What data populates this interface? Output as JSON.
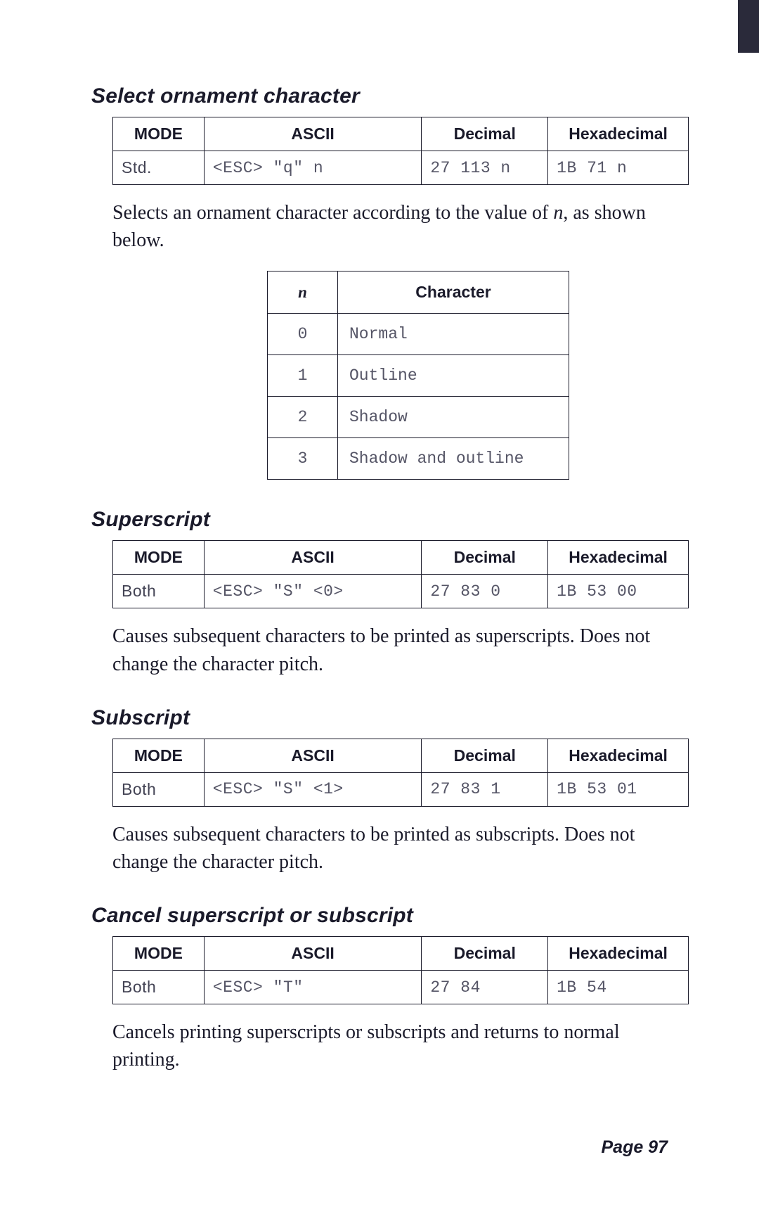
{
  "sections": {
    "ornament": {
      "heading": "Select ornament character",
      "table": {
        "headers": [
          "MODE",
          "ASCII",
          "Decimal",
          "Hexadecimal"
        ],
        "mode": "Std.",
        "ascii": "<ESC> \"q\" n",
        "decimal": "27 113 n",
        "hex": "1B 71 n"
      },
      "desc1": "Selects an ornament character according to the value of ",
      "desc_n": "n",
      "desc2": ", as shown below.",
      "char_table": {
        "hdr_n": "n",
        "hdr_char": "Character",
        "rows": [
          {
            "n": "0",
            "c": "Normal"
          },
          {
            "n": "1",
            "c": "Outline"
          },
          {
            "n": "2",
            "c": "Shadow"
          },
          {
            "n": "3",
            "c": "Shadow and outline"
          }
        ]
      }
    },
    "superscript": {
      "heading": "Superscript",
      "table": {
        "mode": "Both",
        "ascii": "<ESC> \"S\" <0>",
        "decimal": "27 83 0",
        "hex": "1B 53 00"
      },
      "desc": "Causes subsequent characters to be printed as super­scripts. Does not change the character pitch."
    },
    "subscript": {
      "heading": "Subscript",
      "table": {
        "mode": "Both",
        "ascii": "<ESC> \"S\" <1>",
        "decimal": "27 83 1",
        "hex": "1B 53 01"
      },
      "desc": "Causes subsequent characters to be printed as sub­scripts. Does not change the character pitch."
    },
    "cancel": {
      "heading": "Cancel superscript or subscript",
      "table": {
        "mode": "Both",
        "ascii": "<ESC> \"T\"",
        "decimal": "27 84",
        "hex": "1B 54"
      },
      "desc": "Cancels printing superscripts or subscripts and returns to normal printing."
    }
  },
  "page_label": "Page 97"
}
